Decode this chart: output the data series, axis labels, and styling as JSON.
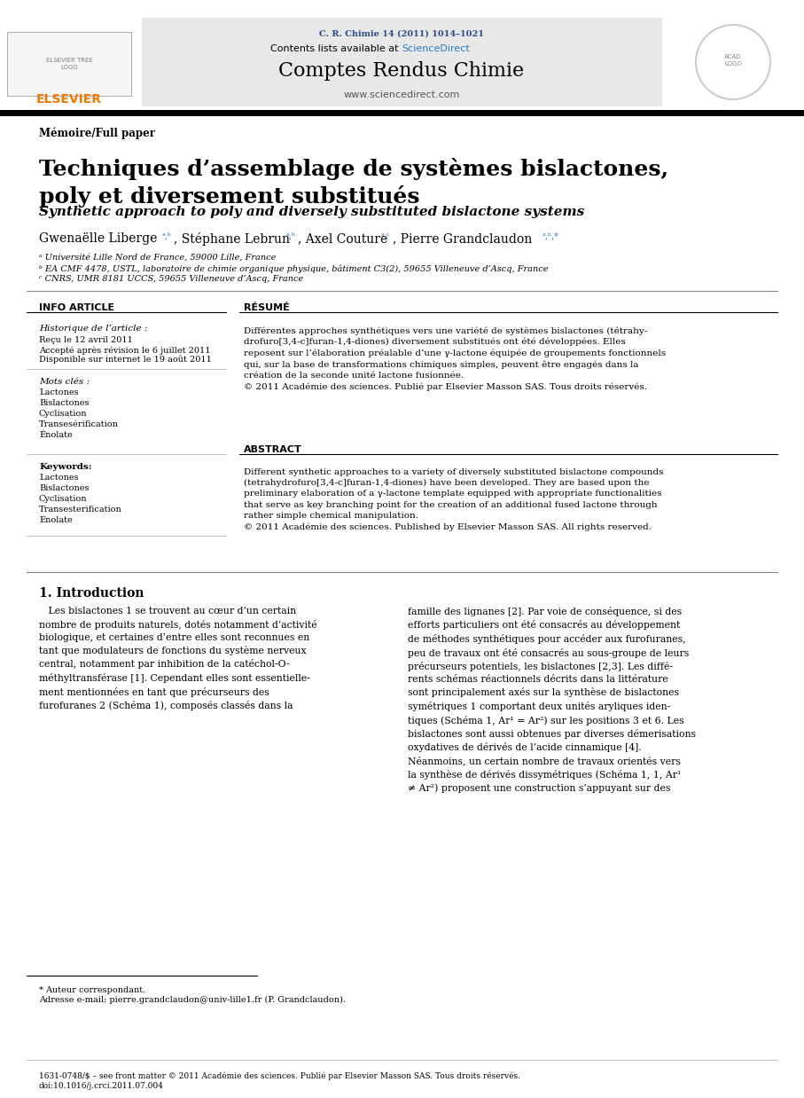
{
  "journal_ref": "C. R. Chimie 14 (2011) 1014–1021",
  "journal_ref_color": "#2b4a8b",
  "contents_text": "Contents lists available at ",
  "sciencedirect_text": "ScienceDirect",
  "sciencedirect_color": "#2b7abf",
  "journal_name": "Comptes Rendus Chimie",
  "journal_url": "www.sciencedirect.com",
  "elsevier_color": "#f07800",
  "header_bg": "#e8e8e8",
  "memoire_label": "Mémoire/Full paper",
  "title_fr": "Techniques d’assemblage de systèmes bislactones,\npoly et diversement substitués",
  "title_en": "Synthetic approach to poly and diversely substituted bislactone systems",
  "affil_a": "ᵃ Université Lille Nord de France, 59000 Lille, France",
  "affil_b": "ᵇ EA CMF 4478, USTL, laboratoire de chimie organique physique, bâtiment C3(2), 59655 Villeneuve d’Ascq, France",
  "affil_c": "ᶜ CNRS, UMR 8181 UCCS, 59655 Villeneuve d’Ascq, France",
  "info_article_label": "INFO ARTICLE",
  "resume_label": "RÉSUMÉ",
  "abstract_label": "ABSTRACT",
  "historique_label": "Historique de l’article :",
  "recu_label": "Reçu le 12 avril 2011",
  "accepte_label": "Accepté après révision le 6 juillet 2011",
  "disponible_label": "Disponible sur internet le 19 août 2011",
  "mots_cles_label": "Mots clés :",
  "mots_cles": [
    "Lactones",
    "Bislactones",
    "Cyclisation",
    "Transesérification",
    "Énolate"
  ],
  "keywords_label": "Keywords:",
  "keywords": [
    "Lactones",
    "Bislactones",
    "Cyclisation",
    "Transesterification",
    "Enolate"
  ],
  "resume_text": "Différentes approches synthétiques vers une variété de systèmes bislactones (tétrahy-\ndrofuro[3,4-c]furan-1,4-diones) diversement substitués ont été développées. Elles\nreposent sur l’élaboration préalable d’une γ-lactone équipée de groupements fonctionnels\nqui, sur la base de transformations chimiques simples, peuvent être engagés dans la\ncréation de la seconde unité lactone fusionnée.\n© 2011 Académie des sciences. Publié par Elsevier Masson SAS. Tous droits réservés.",
  "abstract_text": "Different synthetic approaches to a variety of diversely substituted bislactone compounds\n(tetrahydrofuro[3,4-c]furan-1,4-diones) have been developed. They are based upon the\npreliminary elaboration of a γ-lactone template equipped with appropriate functionalities\nthat serve as key branching point for the creation of an additional fused lactone through\nrather simple chemical manipulation.\n© 2011 Académie des sciences. Published by Elsevier Masson SAS. All rights reserved.",
  "intro_label": "1. Introduction",
  "intro_text_left": "   Les bislactones 1 se trouvent au cœur d’un certain\nnombre de produits naturels, dotés notamment d’activité\nbiologique, et certaines d’entre elles sont reconnues en\ntant que modulateurs de fonctions du système nerveux\ncentral, notamment par inhibition de la catéchol-O-\nméthyltransférase [1]. Cependant elles sont essentielle-\nment mentionnées en tant que précurseurs des\nfurofuranes 2 (Schéma 1), composés classés dans la",
  "intro_text_right": "famille des lignanes [2]. Par voie de conséquence, si des\nefforts particuliers ont été consacrés au développement\nde méthodes synthétiques pour accéder aux furofuranes,\npeu de travaux ont été consacrés au sous-groupe de leurs\nprécurseurs potentiels, les bislactones [2,3]. Les diffé-\nrents schémas réactionnels décrits dans la littérature\nsont principalement axés sur la synthèse de bislactones\nsymétriques 1 comportant deux unités aryliques iden-\ntiques (Schéma 1, Ar¹ = Ar²) sur les positions 3 et 6. Les\nbislactones sont aussi obtenues par diverses démerisations\noxydatives de dérivés de l’acide cinnamique [4].\nNéanmoins, un certain nombre de travaux orientés vers\nla synthèse de dérivés dissymétriques (Schéma 1, 1, Ar¹\n≠ Ar²) proposent une construction s’appuyant sur des",
  "footnote_star": "* Auteur correspondant.",
  "footnote_email": "Adresse e-mail: pierre.grandclaudon@univ-lille1.fr (P. Grandclaudon).",
  "footer_text": "1631-0748/$ – see front matter © 2011 Académie des sciences. Publié par Elsevier Masson SAS. Tous droits réservés.",
  "doi_text": "doi:10.1016/j.crci.2011.07.004",
  "bg_color": "#ffffff",
  "text_color": "#000000",
  "col_div": 265,
  "sciencedirect_color2": "#3366cc"
}
